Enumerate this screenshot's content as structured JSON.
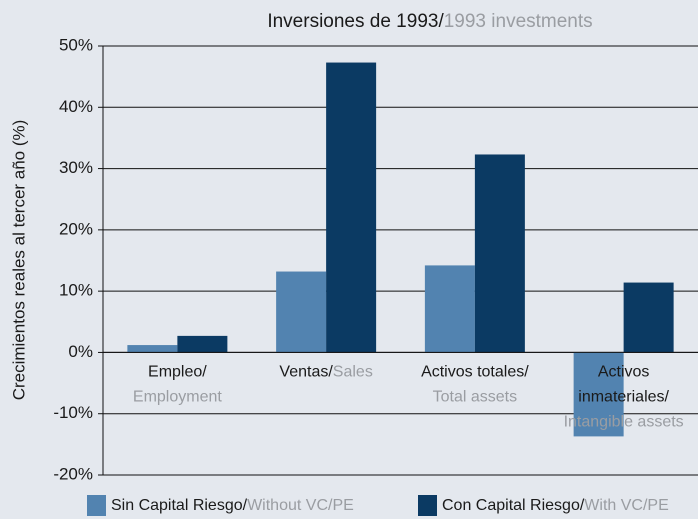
{
  "chart_data": {
    "type": "bar",
    "title": "Inversiones de 1993/",
    "title_en": "1993 investments",
    "ylabel": "Crecimientos reales al tercer año (%)",
    "categories": [
      {
        "es": [
          "Empleo/"
        ],
        "en": "Employment"
      },
      {
        "es": [
          "Ventas/"
        ],
        "en": "Sales"
      },
      {
        "es": [
          "Activos totales/"
        ],
        "en": "Total assets"
      },
      {
        "es": [
          "Activos",
          "inmateriales/"
        ],
        "en": "Intangible assets"
      }
    ],
    "series": [
      {
        "name": "Sin Capital Riesgo/",
        "name_en": "Without VC/PE",
        "color": "#5283b0",
        "values": [
          1.2,
          13.2,
          14.2,
          -13.7
        ]
      },
      {
        "name": "Con Capital Riesgo/",
        "name_en": "With VC/PE",
        "color": "#0b3a63",
        "values": [
          2.7,
          47.3,
          32.3,
          11.4
        ]
      }
    ],
    "ylim": [
      -20,
      50
    ],
    "yticks": [
      {
        "value": -20,
        "label": "-20%"
      },
      {
        "value": -10,
        "label": "-10%"
      },
      {
        "value": 0,
        "label": "0%"
      },
      {
        "value": 10,
        "label": "10%"
      },
      {
        "value": 20,
        "label": "20%"
      },
      {
        "value": 30,
        "label": "30%"
      },
      {
        "value": 40,
        "label": "40%"
      },
      {
        "value": 50,
        "label": "50%"
      }
    ],
    "grid": true,
    "legend": "bottom"
  }
}
